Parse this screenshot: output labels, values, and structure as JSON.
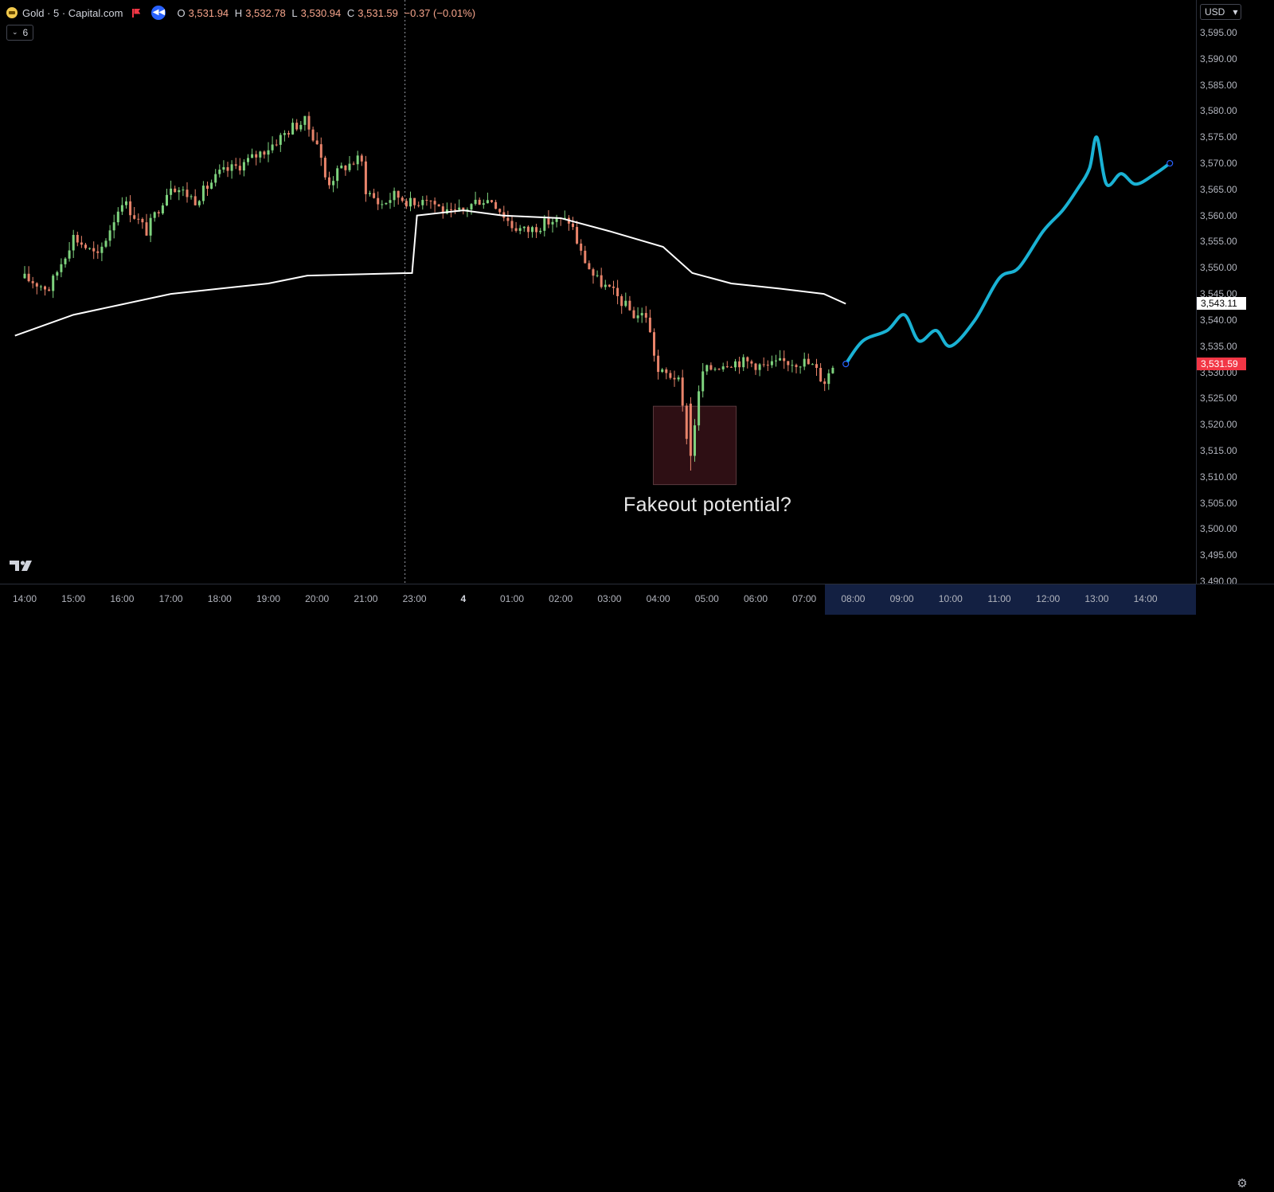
{
  "legend": {
    "symbol_text": "Gold · 5 · Capital.com",
    "open_key": "O",
    "open": "3,531.94",
    "high_key": "H",
    "high": "3,532.78",
    "low_key": "L",
    "low": "3,530.94",
    "close_key": "C",
    "close": "3,531.59",
    "change": "−0.37 (−0.01%)",
    "logo_icon": "gold-coin-icon",
    "flag_icon": "red-flag-icon",
    "replay_icon": "rewind-icon",
    "replay_glyph": "◀◀"
  },
  "indicators_badge": {
    "chevron": "⌄",
    "count": "6"
  },
  "price_scale": {
    "currency": "USD",
    "caret": "▼",
    "labels": [
      "3,595.00",
      "3,590.00",
      "3,585.00",
      "3,580.00",
      "3,575.00",
      "3,570.00",
      "3,565.00",
      "3,560.00",
      "3,555.00",
      "3,550.00",
      "3,545.00",
      "3,540.00",
      "3,535.00",
      "3,530.00",
      "3,525.00",
      "3,520.00",
      "3,515.00",
      "3,510.00",
      "3,505.00",
      "3,500.00",
      "3,495.00",
      "3,490.00"
    ],
    "vwap_tag": "3,543.11",
    "last_price_tag": "3,531.59"
  },
  "time_scale": {
    "labels": [
      "14:00",
      "15:00",
      "16:00",
      "17:00",
      "18:00",
      "19:00",
      "20:00",
      "21:00",
      "23:00",
      "4",
      "01:00",
      "02:00",
      "03:00",
      "04:00",
      "05:00",
      "06:00",
      "07:00",
      "08:00",
      "09:00",
      "10:00",
      "11:00",
      "12:00",
      "13:00",
      "14:00"
    ],
    "settings_icon": "gear-icon",
    "settings_glyph": "⚙"
  },
  "annotation": {
    "text": "Fakeout potential?"
  },
  "colors": {
    "background": "#000000",
    "up_candle": "#7ed37e",
    "down_candle": "#e8836a",
    "vwap_line": "#ffffff",
    "projection_line": "#1ab2d4",
    "highlight_box": "#2e0f14",
    "last_price": "#f23645"
  },
  "chart_data": {
    "type": "candlestick",
    "symbol": "Gold",
    "interval": "5",
    "source": "Capital.com",
    "ylim": [
      3487,
      3598
    ],
    "close_path": [
      [
        0,
        3548
      ],
      [
        0.5,
        3546
      ],
      [
        1,
        3556
      ],
      [
        1.5,
        3552
      ],
      [
        2,
        3563
      ],
      [
        2.5,
        3557
      ],
      [
        3,
        3566
      ],
      [
        3.5,
        3563
      ],
      [
        4,
        3568
      ],
      [
        4.5,
        3570
      ],
      [
        5,
        3573
      ],
      [
        5.5,
        3577
      ],
      [
        5.75,
        3578
      ],
      [
        6,
        3574
      ],
      [
        6.2,
        3566
      ],
      [
        6.5,
        3569
      ],
      [
        6.9,
        3571
      ],
      [
        7,
        3565
      ],
      [
        7.3,
        3562
      ],
      [
        7.6,
        3564
      ],
      [
        8,
        3562
      ],
      [
        8.2,
        3564
      ],
      [
        8.7,
        3560
      ],
      [
        9,
        3561
      ],
      [
        9.3,
        3563
      ],
      [
        9.6,
        3563
      ],
      [
        10,
        3558
      ],
      [
        10.3,
        3557
      ],
      [
        10.8,
        3559
      ],
      [
        11.2,
        3559
      ],
      [
        11.4,
        3553
      ],
      [
        11.7,
        3548
      ],
      [
        12.1,
        3545
      ],
      [
        12.5,
        3541
      ],
      [
        12.75,
        3541
      ],
      [
        13,
        3530
      ],
      [
        13.4,
        3529
      ],
      [
        13.65,
        3514
      ],
      [
        13.9,
        3530
      ],
      [
        14.4,
        3532
      ],
      [
        14.8,
        3532
      ],
      [
        15.2,
        3531
      ],
      [
        15.6,
        3532
      ],
      [
        16,
        3532
      ],
      [
        16.2,
        3531
      ],
      [
        16.4,
        3528
      ],
      [
        16.6,
        3531.59
      ]
    ],
    "vwap_path": [
      [
        -0.2,
        3537
      ],
      [
        1,
        3541
      ],
      [
        2,
        3543
      ],
      [
        3,
        3545
      ],
      [
        4,
        3546
      ],
      [
        5,
        3547
      ],
      [
        5.8,
        3548.5
      ],
      [
        7.95,
        3549
      ],
      [
        8.05,
        3560
      ],
      [
        9,
        3561
      ],
      [
        9.8,
        3560
      ],
      [
        11,
        3559.5
      ],
      [
        12,
        3557
      ],
      [
        13.1,
        3554
      ],
      [
        13.7,
        3549
      ],
      [
        14.5,
        3547
      ],
      [
        15.5,
        3546
      ],
      [
        16.4,
        3545
      ],
      [
        16.85,
        3543.11
      ]
    ],
    "projection_path": [
      [
        16.85,
        3531.59
      ],
      [
        17.2,
        3536
      ],
      [
        17.7,
        3538
      ],
      [
        18.05,
        3541
      ],
      [
        18.35,
        3536
      ],
      [
        18.7,
        3538
      ],
      [
        19.0,
        3535
      ],
      [
        19.5,
        3540
      ],
      [
        20.0,
        3548
      ],
      [
        20.4,
        3550
      ],
      [
        20.9,
        3557
      ],
      [
        21.3,
        3561
      ],
      [
        21.6,
        3565
      ],
      [
        21.85,
        3569
      ],
      [
        22.0,
        3575
      ],
      [
        22.2,
        3566
      ],
      [
        22.5,
        3568
      ],
      [
        22.8,
        3566
      ],
      [
        23.2,
        3568
      ],
      [
        23.5,
        3570
      ]
    ],
    "highlight_zone": {
      "x_start": 12.9,
      "x_end": 14.6,
      "y_low": 3508.5,
      "y_high": 3523.5
    },
    "session_break_x": 8
  }
}
